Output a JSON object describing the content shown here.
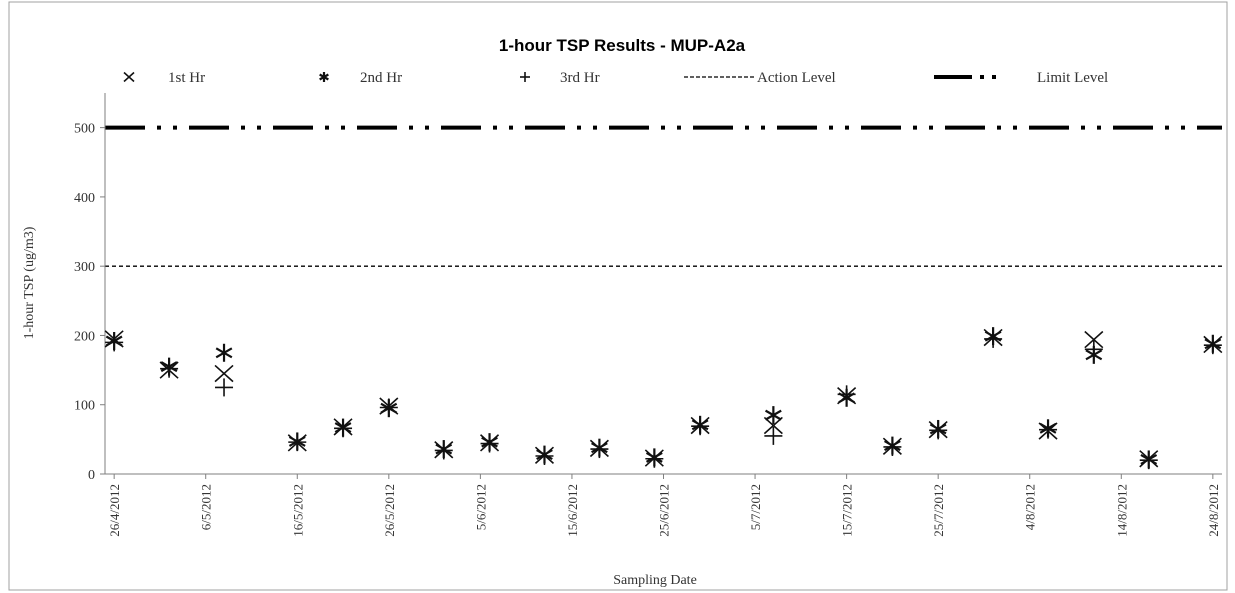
{
  "chart_data": {
    "type": "scatter",
    "title": "1-hour TSP Results - MUP-A2a",
    "xlabel": "Sampling Date",
    "ylabel": "1-hour TSP (ug/m3)",
    "ylim": [
      0,
      550
    ],
    "yticks": [
      "0",
      "100",
      "200",
      "300",
      "400",
      "500"
    ],
    "xlim": [
      "2012-04-25",
      "2012-08-25"
    ],
    "xticks": [
      {
        "date": "2012-04-26",
        "label": "26/4/2012"
      },
      {
        "date": "2012-05-06",
        "label": "6/5/2012"
      },
      {
        "date": "2012-05-16",
        "label": "16/5/2012"
      },
      {
        "date": "2012-05-26",
        "label": "26/5/2012"
      },
      {
        "date": "2012-06-05",
        "label": "5/6/2012"
      },
      {
        "date": "2012-06-15",
        "label": "15/6/2012"
      },
      {
        "date": "2012-06-25",
        "label": "25/6/2012"
      },
      {
        "date": "2012-07-05",
        "label": "5/7/2012"
      },
      {
        "date": "2012-07-15",
        "label": "15/7/2012"
      },
      {
        "date": "2012-07-25",
        "label": "25/7/2012"
      },
      {
        "date": "2012-08-04",
        "label": "4/8/2012"
      },
      {
        "date": "2012-08-14",
        "label": "14/8/2012"
      },
      {
        "date": "2012-08-24",
        "label": "24/8/2012"
      }
    ],
    "legend_position": "top",
    "series": [
      {
        "name": "1st Hr",
        "marker": "x",
        "points": [
          [
            "2012-04-26",
            195
          ],
          [
            "2012-05-02",
            150
          ],
          [
            "2012-05-08",
            145
          ],
          [
            "2012-05-16",
            45
          ],
          [
            "2012-05-21",
            68
          ],
          [
            "2012-05-26",
            98
          ],
          [
            "2012-06-01",
            35
          ],
          [
            "2012-06-06",
            45
          ],
          [
            "2012-06-12",
            27
          ],
          [
            "2012-06-18",
            37
          ],
          [
            "2012-06-24",
            23
          ],
          [
            "2012-06-29",
            70
          ],
          [
            "2012-07-07",
            70
          ],
          [
            "2012-07-15",
            113
          ],
          [
            "2012-07-20",
            40
          ],
          [
            "2012-07-25",
            64
          ],
          [
            "2012-07-31",
            197
          ],
          [
            "2012-08-06",
            62
          ],
          [
            "2012-08-11",
            194
          ],
          [
            "2012-08-17",
            22
          ],
          [
            "2012-08-24",
            187
          ]
        ]
      },
      {
        "name": "2nd Hr",
        "marker": "asterisk",
        "points": [
          [
            "2012-04-26",
            192
          ],
          [
            "2012-05-02",
            155
          ],
          [
            "2012-05-08",
            175
          ],
          [
            "2012-05-16",
            47
          ],
          [
            "2012-05-21",
            67
          ],
          [
            "2012-05-26",
            95
          ],
          [
            "2012-06-01",
            36
          ],
          [
            "2012-06-06",
            46
          ],
          [
            "2012-06-12",
            28
          ],
          [
            "2012-06-18",
            38
          ],
          [
            "2012-06-24",
            24
          ],
          [
            "2012-06-29",
            71
          ],
          [
            "2012-07-07",
            85
          ],
          [
            "2012-07-15",
            110
          ],
          [
            "2012-07-20",
            41
          ],
          [
            "2012-07-25",
            65
          ],
          [
            "2012-07-31",
            199
          ],
          [
            "2012-08-06",
            66
          ],
          [
            "2012-08-11",
            172
          ],
          [
            "2012-08-17",
            21
          ],
          [
            "2012-08-24",
            188
          ]
        ]
      },
      {
        "name": "3rd Hr",
        "marker": "plus",
        "points": [
          [
            "2012-04-26",
            190
          ],
          [
            "2012-05-02",
            152
          ],
          [
            "2012-05-08",
            125
          ],
          [
            "2012-05-16",
            46
          ],
          [
            "2012-05-21",
            66
          ],
          [
            "2012-05-26",
            96
          ],
          [
            "2012-06-01",
            34
          ],
          [
            "2012-06-06",
            44
          ],
          [
            "2012-06-12",
            26
          ],
          [
            "2012-06-18",
            36
          ],
          [
            "2012-06-24",
            22
          ],
          [
            "2012-06-29",
            69
          ],
          [
            "2012-07-07",
            55
          ],
          [
            "2012-07-15",
            115
          ],
          [
            "2012-07-20",
            39
          ],
          [
            "2012-07-25",
            63
          ],
          [
            "2012-07-31",
            195
          ],
          [
            "2012-08-06",
            64
          ],
          [
            "2012-08-11",
            180
          ],
          [
            "2012-08-17",
            20
          ],
          [
            "2012-08-24",
            186
          ]
        ]
      }
    ],
    "reference_lines": [
      {
        "name": "Action Level",
        "value": 300,
        "style": "dashed",
        "color": "#000000"
      },
      {
        "name": "Limit Level",
        "value": 500,
        "style": "dash-dot-dot",
        "color": "#000000"
      }
    ],
    "colors": {
      "marker": "#111111",
      "axis": "#7f7f7f",
      "text": "#333333"
    }
  }
}
